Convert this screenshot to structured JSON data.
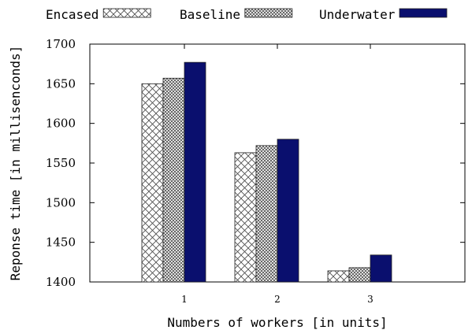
{
  "chart_data": {
    "type": "bar",
    "categories": [
      "1",
      "2",
      "3"
    ],
    "series": [
      {
        "name": "Encased",
        "values": [
          1650,
          1563,
          1414
        ]
      },
      {
        "name": "Baseline",
        "values": [
          1657,
          1572,
          1418
        ]
      },
      {
        "name": "Underwater",
        "values": [
          1677,
          1580,
          1434
        ]
      }
    ],
    "xlabel": "Numbers of workers [in units]",
    "ylabel": "Reponse time [in millisenconds]",
    "ylim": [
      1400,
      1700
    ],
    "yticks": [
      "1400",
      "1450",
      "1500",
      "1550",
      "1600",
      "1650",
      "1700"
    ],
    "grid": false,
    "legend_position": "top",
    "colors": {
      "underwater": "#0a0f6e",
      "hatch": "#555555",
      "axis": "#000000"
    }
  }
}
